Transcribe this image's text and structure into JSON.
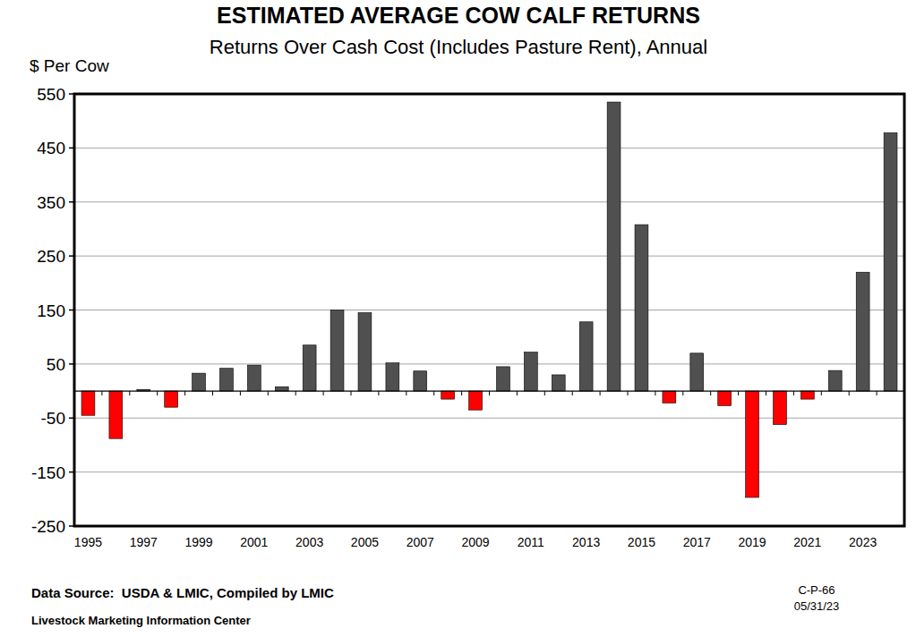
{
  "chart_data": {
    "type": "bar",
    "title": "ESTIMATED AVERAGE COW CALF RETURNS",
    "subtitle": "Returns Over Cash Cost (Includes Pasture Rent), Annual",
    "y_label": "$ Per Cow",
    "annotations": [
      "Data Source:  USDA & LMIC, Compiled by LMIC",
      "Livestock Marketing Information Center",
      "C-P-66",
      "05/31/23"
    ],
    "categories": [
      "1995",
      null,
      "1997",
      null,
      "1999",
      null,
      "2001",
      null,
      "2003",
      null,
      "2005",
      null,
      "2007",
      null,
      "2009",
      null,
      "2011",
      null,
      "2013",
      null,
      "2015",
      null,
      "2017",
      null,
      "2019",
      null,
      "2021",
      null,
      "2023",
      null
    ],
    "values": [
      -45,
      -88,
      3,
      -30,
      33,
      42,
      48,
      8,
      85,
      150,
      145,
      52,
      37,
      -15,
      -35,
      45,
      72,
      30,
      128,
      535,
      308,
      -22,
      70,
      -27,
      -197,
      -62,
      -15,
      38,
      220,
      478
    ],
    "colors": [
      "#ff0000",
      "#ff0000",
      "#505050",
      "#ff0000",
      "#505050",
      "#505050",
      "#505050",
      "#505050",
      "#505050",
      "#505050",
      "#505050",
      "#505050",
      "#505050",
      "#ff0000",
      "#ff0000",
      "#505050",
      "#505050",
      "#505050",
      "#505050",
      "#505050",
      "#505050",
      "#ff0000",
      "#505050",
      "#ff0000",
      "#ff0000",
      "#ff0000",
      "#ff0000",
      "#505050",
      "#505050",
      "#505050"
    ],
    "ylim": [
      -250,
      550
    ],
    "yticks": [
      -250,
      -150,
      -50,
      50,
      150,
      250,
      350,
      450,
      550
    ],
    "grid": true
  }
}
